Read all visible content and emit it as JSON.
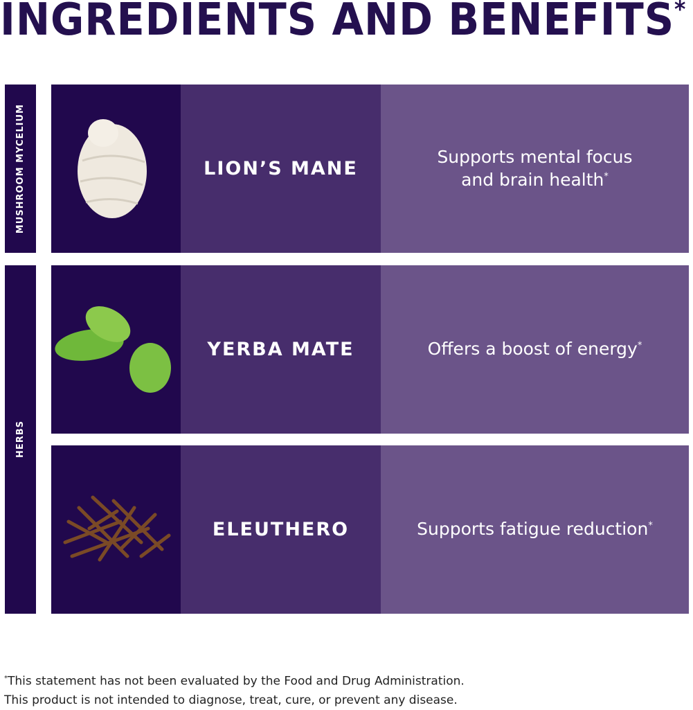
{
  "title": "INGREDIENTS AND BENEFITS",
  "title_mark": "*",
  "categories": [
    {
      "label": "MUSHROOM MYCELIUM"
    },
    {
      "label": "HERBS"
    }
  ],
  "rows": [
    {
      "name": "LION’S MANE",
      "benefit_line1": "Supports mental focus",
      "benefit_line2": "and brain health",
      "mark": "*",
      "image": "lions-mane-mushroom"
    },
    {
      "name": "YERBA MATE",
      "benefit_line1": "Offers a boost of energy",
      "benefit_line2": "",
      "mark": "*",
      "image": "yerba-mate-leaves"
    },
    {
      "name": "ELEUTHERO",
      "benefit_line1": "Supports fatigue reduction",
      "benefit_line2": "",
      "mark": "*",
      "image": "eleuthero-root"
    }
  ],
  "footnote": {
    "mark": "*",
    "line1": "This statement has not been evaluated by the Food and Drug Administration.",
    "line2": "This product is not intended to diagnose, treat, cure, or prevent any disease."
  },
  "colors": {
    "title": "#24104f",
    "dark": "#21084d",
    "mid": "#472d6c",
    "light": "#6b5489"
  }
}
